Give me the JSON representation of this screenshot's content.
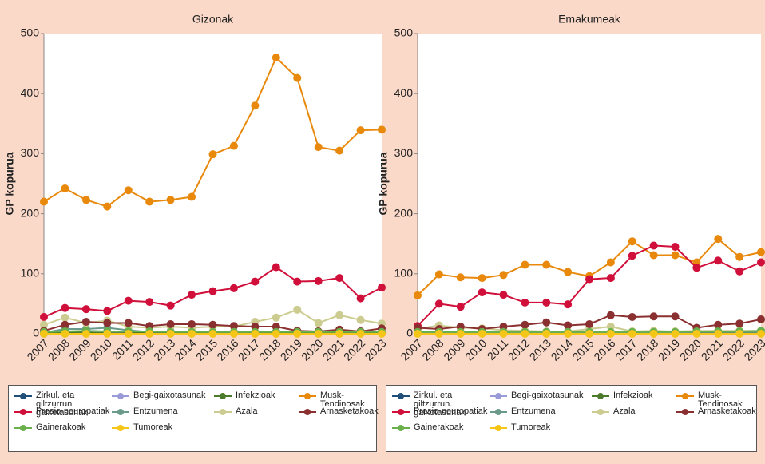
{
  "chart_data": [
    {
      "type": "line",
      "title": "Gizonak",
      "y_label": "GP kopurua",
      "categories": [
        "2007",
        "2008",
        "2009",
        "2010",
        "2011",
        "2012",
        "2013",
        "2014",
        "2015",
        "2016",
        "2017",
        "2018",
        "2019",
        "2020",
        "2021",
        "2022",
        "2023"
      ],
      "ylim": [
        0,
        500
      ],
      "yticks": [
        0,
        100,
        200,
        300,
        400,
        500
      ],
      "grid": false,
      "series": [
        {
          "name": "Zirkul. eta giltzurrun. gaixotasunak",
          "color": "#1f4e79",
          "values": [
            3,
            3,
            3,
            3,
            3,
            2,
            2,
            1,
            2,
            2,
            2,
            2,
            2,
            2,
            2,
            2,
            2
          ]
        },
        {
          "name": "Begi-gaixotasunak",
          "color": "#9a9ad8",
          "values": [
            0,
            2,
            2,
            2,
            1,
            1,
            1,
            1,
            1,
            1,
            1,
            1,
            1,
            1,
            1,
            1,
            1
          ]
        },
        {
          "name": "Infekzioak",
          "color": "#4a7a2a",
          "values": [
            2,
            2,
            2,
            1,
            1,
            2,
            2,
            2,
            2,
            2,
            2,
            2,
            2,
            2,
            2,
            2,
            2
          ]
        },
        {
          "name": "Musk-Tendinosak",
          "color": "#e8890c",
          "values": [
            220,
            242,
            223,
            212,
            239,
            220,
            223,
            228,
            299,
            313,
            380,
            460,
            426,
            311,
            305,
            339,
            340
          ]
        },
        {
          "name": "Presio-neuropatiak",
          "color": "#d0103a",
          "values": [
            28,
            43,
            41,
            38,
            55,
            53,
            47,
            65,
            71,
            76,
            87,
            111,
            87,
            88,
            93,
            59,
            77
          ]
        },
        {
          "name": "Entzumena",
          "color": "#6a9a8a",
          "values": [
            2,
            8,
            8,
            10,
            6,
            3,
            4,
            4,
            3,
            3,
            3,
            4,
            3,
            4,
            3,
            4,
            3
          ]
        },
        {
          "name": "Azala",
          "color": "#cccc90",
          "values": [
            15,
            27,
            18,
            22,
            12,
            10,
            12,
            10,
            12,
            12,
            20,
            27,
            40,
            18,
            31,
            23,
            17
          ]
        },
        {
          "name": "Arnasketakoak",
          "color": "#8b3030",
          "values": [
            5,
            15,
            20,
            18,
            18,
            13,
            16,
            16,
            15,
            13,
            12,
            12,
            5,
            4,
            7,
            4,
            9
          ]
        },
        {
          "name": "Gainerakoak",
          "color": "#6ab04c",
          "values": [
            3,
            4,
            5,
            4,
            4,
            4,
            3,
            3,
            3,
            3,
            3,
            3,
            3,
            3,
            3,
            3,
            3
          ]
        },
        {
          "name": "Tumoreak",
          "color": "#f5c518",
          "values": [
            0,
            0,
            0,
            0,
            0,
            0,
            0,
            0,
            0,
            0,
            0,
            0,
            0,
            0,
            0,
            0,
            0
          ]
        }
      ]
    },
    {
      "type": "line",
      "title": "Emakumeak",
      "y_label": "GP kopurua",
      "categories": [
        "2007",
        "2008",
        "2009",
        "2010",
        "2011",
        "2012",
        "2013",
        "2014",
        "2015",
        "2016",
        "2017",
        "2018",
        "2019",
        "2020",
        "2021",
        "2022",
        "2023"
      ],
      "ylim": [
        0,
        500
      ],
      "yticks": [
        0,
        100,
        200,
        300,
        400,
        500
      ],
      "grid": false,
      "series": [
        {
          "name": "Zirkul. eta giltzurrun. gaixotasunak",
          "color": "#1f4e79",
          "values": [
            1,
            1,
            1,
            1,
            1,
            1,
            1,
            1,
            1,
            1,
            1,
            1,
            1,
            1,
            1,
            1,
            1
          ]
        },
        {
          "name": "Begi-gaixotasunak",
          "color": "#9a9ad8",
          "values": [
            1,
            1,
            1,
            1,
            1,
            1,
            1,
            1,
            1,
            1,
            1,
            1,
            1,
            1,
            1,
            1,
            1
          ]
        },
        {
          "name": "Infekzioak",
          "color": "#4a7a2a",
          "values": [
            1,
            1,
            1,
            1,
            1,
            1,
            1,
            1,
            1,
            1,
            1,
            1,
            1,
            1,
            1,
            1,
            1
          ]
        },
        {
          "name": "Musk-Tendinosak",
          "color": "#e8890c",
          "values": [
            64,
            99,
            94,
            93,
            98,
            115,
            115,
            103,
            96,
            119,
            154,
            131,
            131,
            119,
            158,
            128,
            136
          ]
        },
        {
          "name": "Presio-neuropatiak",
          "color": "#d0103a",
          "values": [
            13,
            50,
            45,
            69,
            65,
            52,
            52,
            49,
            91,
            93,
            130,
            147,
            145,
            110,
            122,
            104,
            119
          ]
        },
        {
          "name": "Entzumena",
          "color": "#6a9a8a",
          "values": [
            2,
            2,
            2,
            2,
            2,
            2,
            2,
            2,
            2,
            2,
            2,
            2,
            2,
            3,
            3,
            3,
            3
          ]
        },
        {
          "name": "Azala",
          "color": "#cccc90",
          "values": [
            8,
            14,
            10,
            9,
            6,
            5,
            4,
            4,
            8,
            12,
            4,
            5,
            4,
            5,
            5,
            5,
            5
          ]
        },
        {
          "name": "Arnasketakoak",
          "color": "#8b3030",
          "values": [
            10,
            8,
            12,
            8,
            12,
            15,
            19,
            14,
            16,
            31,
            28,
            29,
            29,
            10,
            15,
            17,
            24
          ]
        },
        {
          "name": "Gainerakoak",
          "color": "#6ab04c",
          "values": [
            3,
            3,
            3,
            3,
            3,
            3,
            3,
            3,
            3,
            3,
            3,
            3,
            3,
            4,
            4,
            4,
            5
          ]
        },
        {
          "name": "Tumoreak",
          "color": "#f5c518",
          "values": [
            0,
            0,
            0,
            0,
            0,
            0,
            0,
            0,
            0,
            0,
            0,
            0,
            0,
            0,
            0,
            0,
            0
          ]
        }
      ]
    }
  ]
}
